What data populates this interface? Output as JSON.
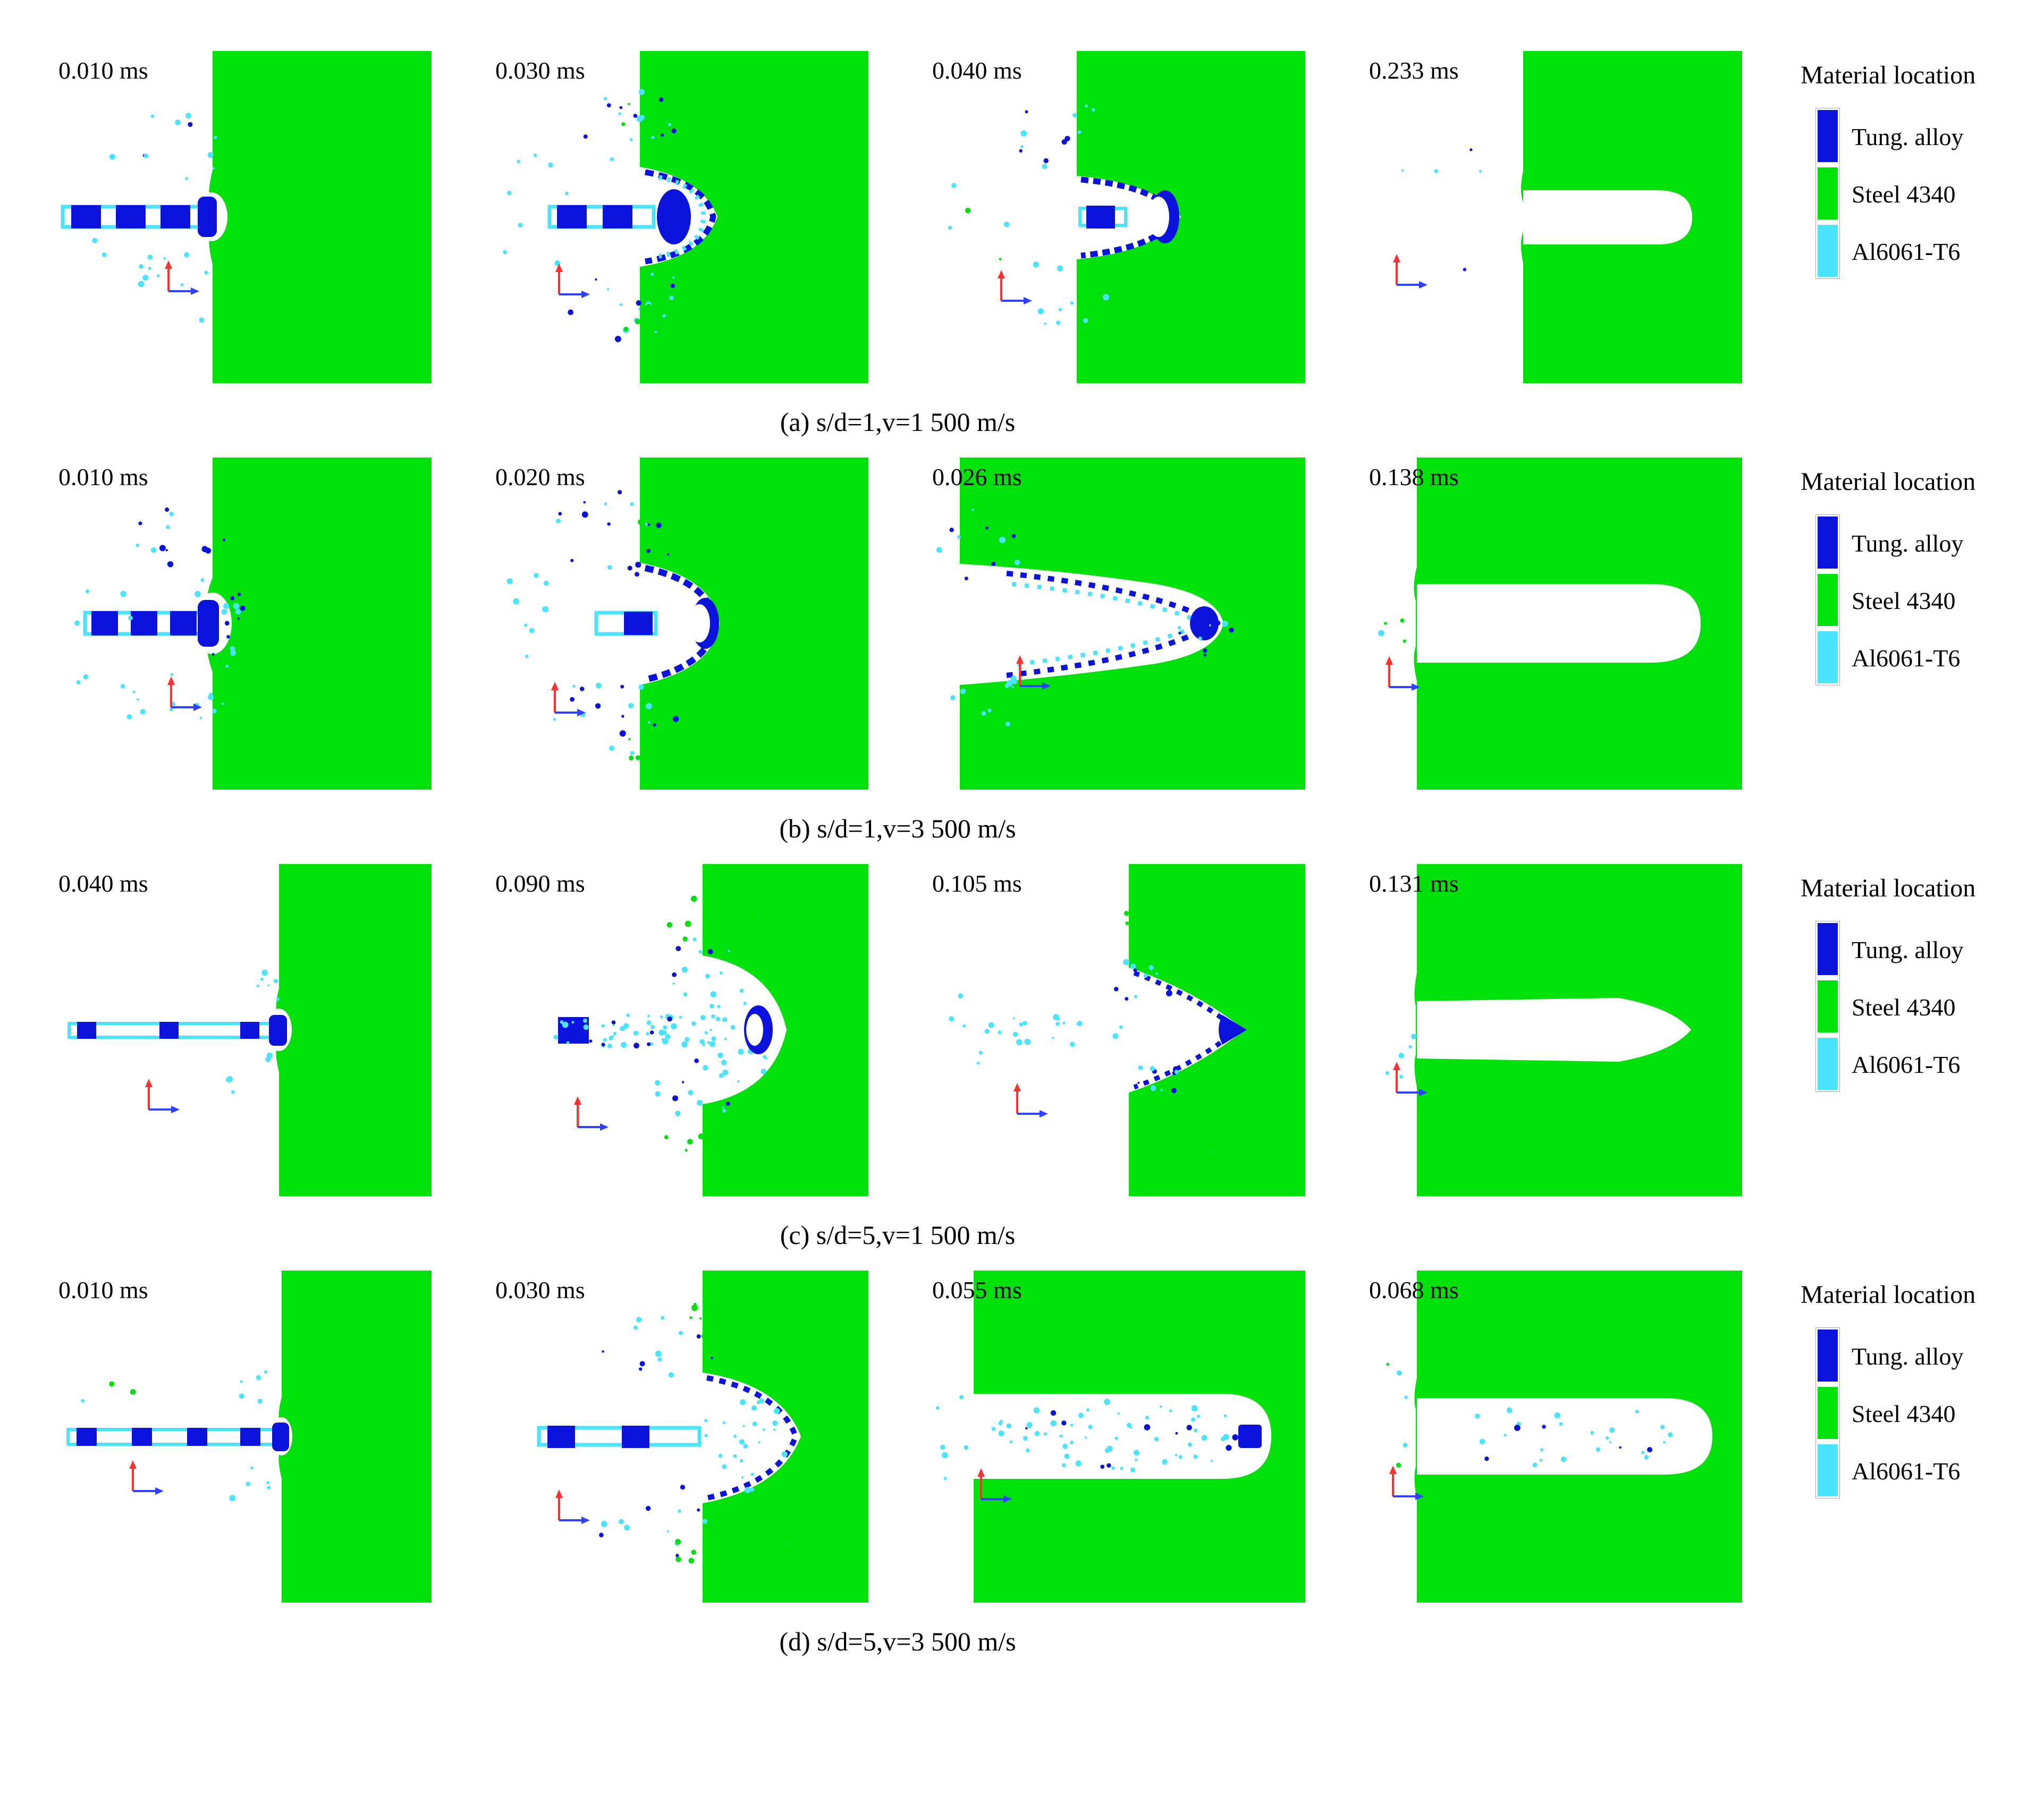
{
  "page": {
    "background": "#ffffff"
  },
  "colors": {
    "tungsten_blue": "#0a12dc",
    "steel_green": "#00e10c",
    "aluminum_cyan": "#4ae4ff",
    "axis_red": "#ff3030",
    "axis_blue": "#3040ff",
    "text": "#000000"
  },
  "legend": {
    "title": "Material location",
    "items": [
      {
        "label": "Tung. alloy",
        "color_key": "tungsten_blue"
      },
      {
        "label": "Steel 4340",
        "color_key": "steel_green"
      },
      {
        "label": "Al6061-T6",
        "color_key": "aluminum_cyan"
      }
    ]
  },
  "rows": [
    {
      "id": "a",
      "caption": "(a) s/d=1,v=1 500 m/s",
      "panels": [
        {
          "time": "0.010 ms"
        },
        {
          "time": "0.030 ms"
        },
        {
          "time": "0.040 ms"
        },
        {
          "time": "0.233 ms"
        }
      ]
    },
    {
      "id": "b",
      "caption": "(b) s/d=1,v=3 500 m/s",
      "panels": [
        {
          "time": "0.010 ms"
        },
        {
          "time": "0.020 ms"
        },
        {
          "time": "0.026 ms"
        },
        {
          "time": "0.138 ms"
        }
      ]
    },
    {
      "id": "c",
      "caption": "(c) s/d=5,v=1 500 m/s",
      "panels": [
        {
          "time": "0.040 ms"
        },
        {
          "time": "0.090 ms"
        },
        {
          "time": "0.105 ms"
        },
        {
          "time": "0.131 ms"
        }
      ]
    },
    {
      "id": "d",
      "caption": "(d) s/d=5,v=3 500 m/s",
      "panels": [
        {
          "time": "0.010 ms"
        },
        {
          "time": "0.030 ms"
        },
        {
          "time": "0.055 ms"
        },
        {
          "time": "0.068 ms"
        }
      ]
    }
  ]
}
